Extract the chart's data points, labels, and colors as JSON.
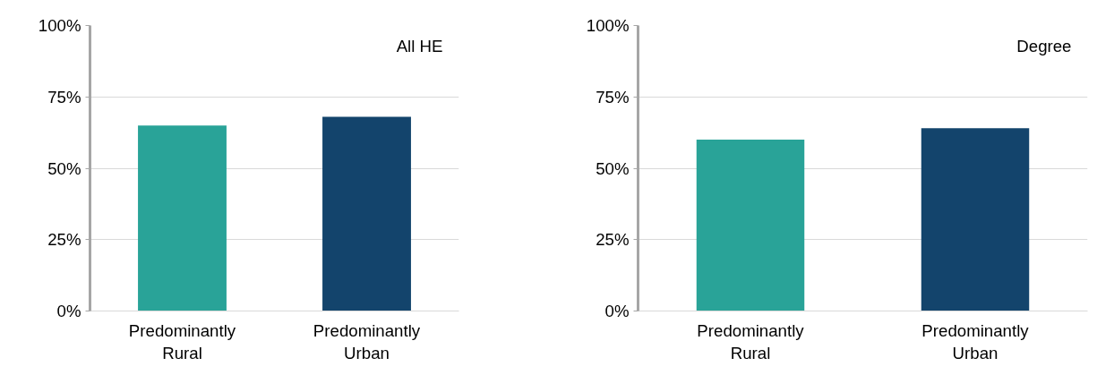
{
  "chart_data": [
    {
      "type": "bar",
      "categories": [
        "Predominantly Rural",
        "Predominantly Urban"
      ],
      "values": [
        65,
        68
      ],
      "colors": [
        "#29a398",
        "#13446c"
      ],
      "ylim": [
        0,
        100
      ],
      "yticks": [
        {
          "value": 0,
          "label": "0%"
        },
        {
          "value": 25,
          "label": "25%"
        },
        {
          "value": 50,
          "label": "50%"
        },
        {
          "value": 75,
          "label": "75%"
        },
        {
          "value": 100,
          "label": "100%"
        }
      ],
      "grid": "y",
      "annotations": [
        "All HE"
      ]
    },
    {
      "type": "bar",
      "categories": [
        "Predominantly Rural",
        "Predominantly Urban"
      ],
      "values": [
        60,
        64
      ],
      "colors": [
        "#29a398",
        "#13446c"
      ],
      "ylim": [
        0,
        100
      ],
      "yticks": [
        {
          "value": 0,
          "label": "0%"
        },
        {
          "value": 25,
          "label": "25%"
        },
        {
          "value": 50,
          "label": "50%"
        },
        {
          "value": 75,
          "label": "75%"
        },
        {
          "value": 100,
          "label": "100%"
        }
      ],
      "grid": "y",
      "annotations": [
        "Degree"
      ]
    }
  ]
}
